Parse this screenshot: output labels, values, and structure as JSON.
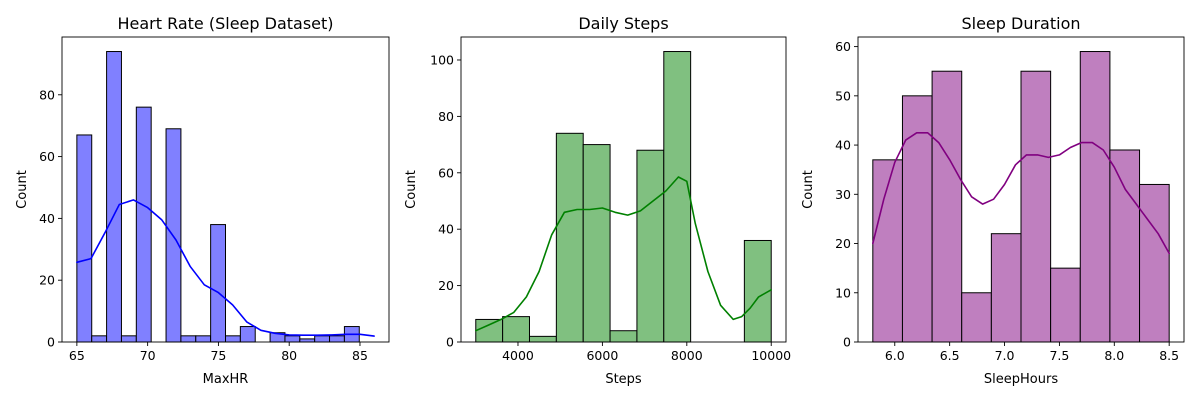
{
  "chart_data": [
    {
      "type": "bar",
      "title": "Heart Rate (Sleep Dataset)",
      "xlabel": "MaxHR",
      "ylabel": "Count",
      "xlim": [
        63.95,
        87.05
      ],
      "ylim": [
        0,
        98.7
      ],
      "xticks": [
        65,
        70,
        75,
        80,
        85
      ],
      "yticks": [
        0,
        20,
        40,
        60,
        80
      ],
      "bin_edges": [
        65,
        66.05,
        67.1,
        68.15,
        69.2,
        70.25,
        71.3,
        72.35,
        73.4,
        74.45,
        75.5,
        76.55,
        77.6,
        78.65,
        79.7,
        80.75,
        81.8,
        82.85,
        83.9,
        84.95,
        86
      ],
      "counts": [
        67,
        2,
        94,
        2,
        76,
        0,
        69,
        2,
        2,
        38,
        2,
        5,
        0,
        3,
        2,
        1,
        2,
        2,
        5,
        0
      ],
      "kde": {
        "x": [
          65,
          66,
          67,
          68,
          69,
          70,
          71,
          72,
          73,
          74,
          75,
          76,
          77,
          78,
          79,
          80,
          81,
          82,
          83,
          84,
          85,
          86
        ],
        "y": [
          25.8,
          27,
          35.5,
          44.5,
          46,
          43.5,
          39.5,
          33,
          24.5,
          18.5,
          16,
          12,
          6.5,
          3.8,
          2.8,
          2.3,
          2.2,
          2.2,
          2.3,
          2.5,
          2.5,
          1.9
        ]
      },
      "colors": {
        "bar": "#8080ff",
        "line": "#0000ff"
      }
    },
    {
      "type": "bar",
      "title": "Daily Steps",
      "xlabel": "Steps",
      "ylabel": "Count",
      "xlim": [
        2650,
        10350
      ],
      "ylim": [
        0,
        108.15
      ],
      "xticks": [
        4000,
        6000,
        8000,
        10000
      ],
      "yticks": [
        0,
        20,
        40,
        60,
        80,
        100
      ],
      "bin_edges": [
        3000,
        3636.4,
        4272.7,
        4909.1,
        5545.5,
        6181.8,
        6818.2,
        7454.5,
        8090.9,
        8727.3,
        9363.6,
        10000
      ],
      "counts": [
        8,
        9,
        2,
        74,
        70,
        4,
        68,
        103,
        0,
        0,
        36
      ],
      "kde": {
        "x": [
          3000,
          3300,
          3600,
          3900,
          4200,
          4500,
          4800,
          5100,
          5400,
          5700,
          6000,
          6300,
          6600,
          6900,
          7200,
          7500,
          7800,
          8000,
          8200,
          8500,
          8800,
          9100,
          9300,
          9500,
          9700,
          10000
        ],
        "y": [
          4,
          6,
          8,
          10.5,
          16,
          25,
          38,
          46,
          47,
          47,
          47.5,
          46,
          45,
          46.5,
          50,
          53.5,
          58.5,
          57,
          42,
          25,
          13,
          8,
          9,
          12,
          16,
          18.5
        ]
      },
      "colors": {
        "bar": "#80c080",
        "line": "#008000"
      }
    },
    {
      "type": "bar",
      "title": "Sleep Duration",
      "xlabel": "SleepHours",
      "ylabel": "Count",
      "xlim": [
        5.665,
        8.635
      ],
      "ylim": [
        0,
        61.95
      ],
      "xticks": [
        6.0,
        6.5,
        7.0,
        7.5,
        8.0,
        8.5
      ],
      "xtick_labels": [
        "6.0",
        "6.5",
        "7.0",
        "7.5",
        "8.0",
        "8.5"
      ],
      "yticks": [
        0,
        10,
        20,
        30,
        40,
        50,
        60
      ],
      "bin_edges": [
        5.8,
        6.07,
        6.34,
        6.61,
        6.88,
        7.15,
        7.42,
        7.69,
        7.96,
        8.23,
        8.5
      ],
      "counts": [
        37,
        50,
        55,
        10,
        22,
        55,
        15,
        59,
        39,
        32
      ],
      "kde": {
        "x": [
          5.8,
          5.9,
          6.0,
          6.1,
          6.2,
          6.3,
          6.4,
          6.5,
          6.6,
          6.7,
          6.8,
          6.9,
          7.0,
          7.1,
          7.2,
          7.3,
          7.4,
          7.5,
          7.6,
          7.7,
          7.8,
          7.9,
          8.0,
          8.1,
          8.2,
          8.3,
          8.4,
          8.5
        ],
        "y": [
          20,
          29,
          36.5,
          41,
          42.5,
          42.5,
          40.5,
          37,
          33,
          29.5,
          28,
          29,
          32,
          36,
          38,
          38,
          37.5,
          38,
          39.5,
          40.5,
          40.5,
          39,
          35.5,
          31,
          28,
          25,
          22,
          18
        ]
      },
      "colors": {
        "bar": "#bf7fbf",
        "line": "#800080"
      }
    }
  ]
}
